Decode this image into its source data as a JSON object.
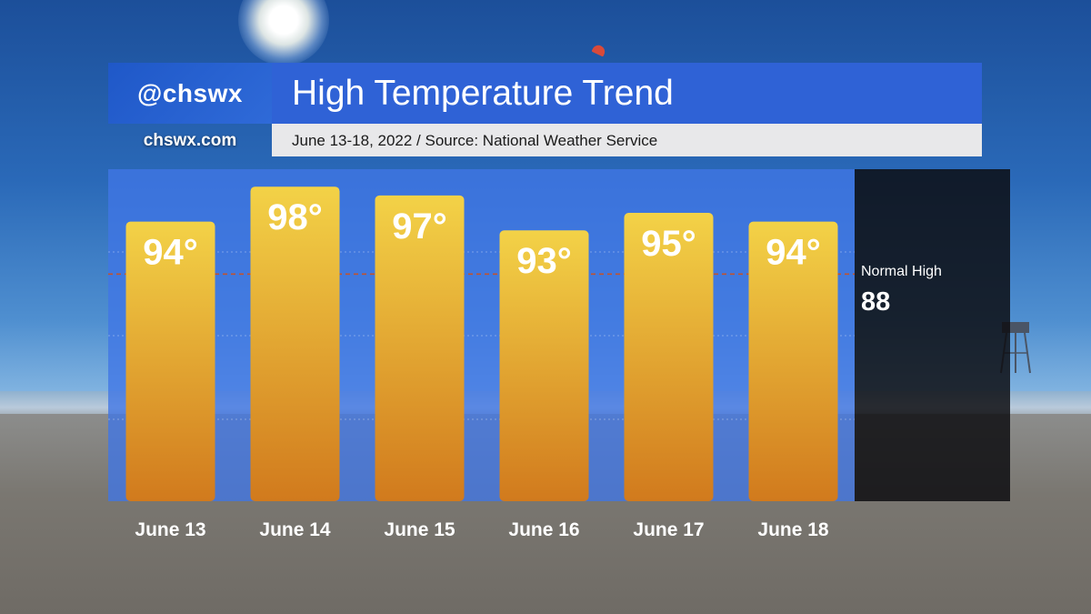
{
  "header": {
    "handle": "@chswx",
    "website": "chswx.com",
    "title": "High Temperature Trend",
    "subtitle": "June 13-18, 2022 / Source: National Weather Service"
  },
  "normal": {
    "label": "Normal High",
    "value_text": "88"
  },
  "colors": {
    "bar_top": "#f3d247",
    "bar_bottom": "#d17a1d",
    "plot_bg": "#4076e6",
    "title_bg": "#2f62d6",
    "normal_line": "#c0532f"
  },
  "chart_data": {
    "type": "bar",
    "title": "High Temperature Trend",
    "subtitle": "June 13-18, 2022 / Source: National Weather Service",
    "categories": [
      "June 13",
      "June 14",
      "June 15",
      "June 16",
      "June 17",
      "June 18"
    ],
    "values": [
      94,
      98,
      97,
      93,
      95,
      94
    ],
    "value_labels": [
      "94°",
      "98°",
      "97°",
      "93°",
      "95°",
      "94°"
    ],
    "reference_line": {
      "label": "Normal High",
      "value": 88
    },
    "ylim": [
      62,
      100
    ],
    "grid": true,
    "legend": "none"
  }
}
